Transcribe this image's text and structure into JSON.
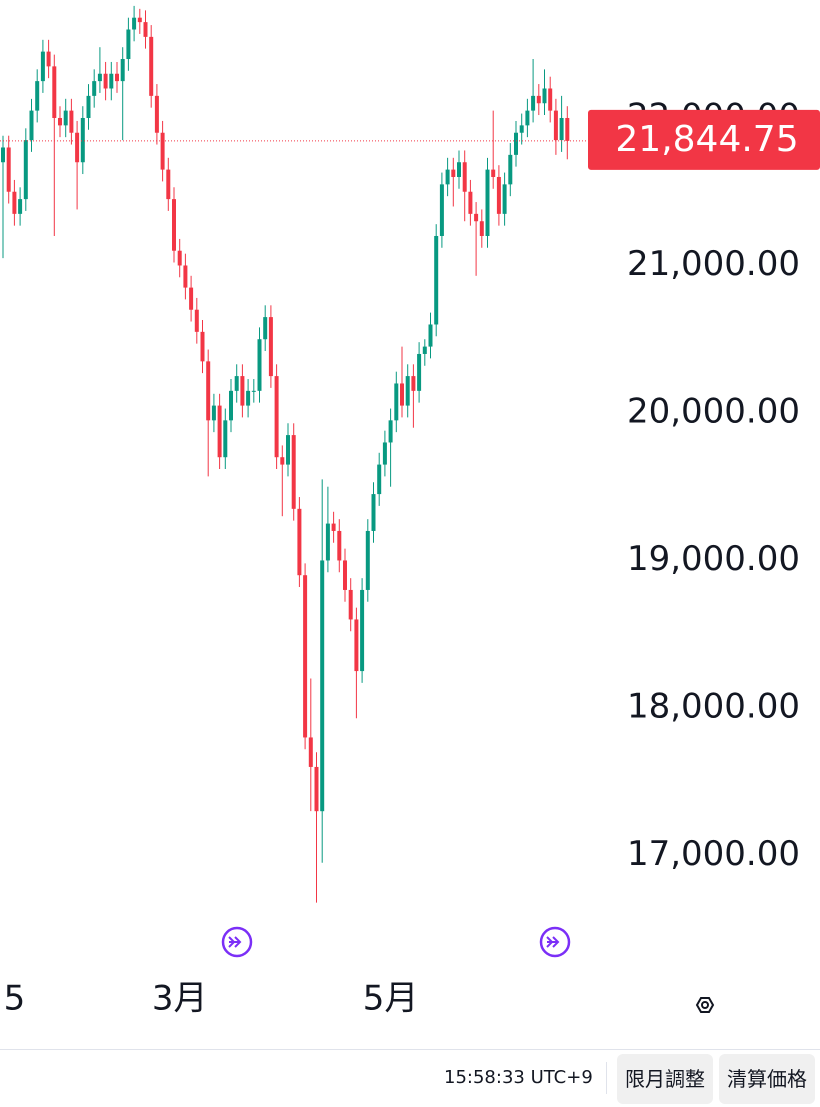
{
  "chart_data": {
    "type": "candlestick",
    "up_color": "#089981",
    "down_color": "#f23645",
    "ylim": [
      16230,
      22800
    ],
    "yticks": [
      {
        "value": 17000,
        "label": "17,000.00"
      },
      {
        "value": 18000,
        "label": "18,000.00"
      },
      {
        "value": 19000,
        "label": "19,000.00"
      },
      {
        "value": 20000,
        "label": "20,000.00"
      },
      {
        "value": 21000,
        "label": "21,000.00"
      },
      {
        "value": 22000,
        "label": "22,000.00"
      }
    ],
    "last_price": {
      "value": 21844.75,
      "label": "21,844.75"
    },
    "categories": [
      null,
      null,
      "5",
      null,
      null,
      null,
      null,
      null,
      null,
      null,
      null,
      null,
      null,
      null,
      null,
      null,
      null,
      null,
      null,
      null,
      null,
      null,
      null,
      null,
      null,
      null,
      null,
      null,
      null,
      null,
      null,
      "3月",
      null,
      null,
      null,
      null,
      null,
      null,
      null,
      null,
      null,
      null,
      null,
      null,
      null,
      null,
      null,
      null,
      null,
      null,
      null,
      null,
      null,
      null,
      null,
      null,
      null,
      null,
      null,
      null,
      null,
      null,
      null,
      null,
      null,
      null,
      null,
      null,
      "5月",
      null,
      null,
      null,
      null,
      null,
      null,
      null,
      null,
      null,
      null,
      null,
      null,
      null,
      null,
      null,
      null,
      null,
      null,
      null,
      null,
      null,
      null,
      null,
      null,
      null,
      null,
      null,
      null,
      null,
      null,
      null
    ],
    "ohlc": [
      [
        21700,
        21880,
        21050,
        21800
      ],
      [
        21800,
        21880,
        21420,
        21500
      ],
      [
        21500,
        21580,
        21270,
        21350
      ],
      [
        21350,
        21530,
        21270,
        21450
      ],
      [
        21450,
        21930,
        21370,
        21850
      ],
      [
        21850,
        22130,
        21770,
        22050
      ],
      [
        22050,
        22330,
        21970,
        22250
      ],
      [
        22250,
        22530,
        22170,
        22450
      ],
      [
        22450,
        22530,
        22270,
        22350
      ],
      [
        22350,
        22430,
        21200,
        22000
      ],
      [
        22000,
        22080,
        21870,
        21950
      ],
      [
        21950,
        22130,
        21870,
        22050
      ],
      [
        22050,
        22130,
        21820,
        21900
      ],
      [
        21900,
        21980,
        21380,
        21700
      ],
      [
        21700,
        22080,
        21620,
        22000
      ],
      [
        22000,
        22230,
        21920,
        22150
      ],
      [
        22150,
        22330,
        22070,
        22250
      ],
      [
        22250,
        22480,
        22170,
        22300
      ],
      [
        22300,
        22380,
        22120,
        22200
      ],
      [
        22200,
        22380,
        22120,
        22300
      ],
      [
        22300,
        22380,
        22170,
        22250
      ],
      [
        22250,
        22480,
        21850,
        22400
      ],
      [
        22400,
        22680,
        22320,
        22600
      ],
      [
        22600,
        22760,
        22520,
        22680
      ],
      [
        22680,
        22740,
        22570,
        22650
      ],
      [
        22650,
        22730,
        22470,
        22550
      ],
      [
        22550,
        22630,
        22070,
        22150
      ],
      [
        22150,
        22230,
        21820,
        21900
      ],
      [
        21900,
        21980,
        21570,
        21650
      ],
      [
        21650,
        21730,
        21370,
        21450
      ],
      [
        21450,
        21530,
        21020,
        21100
      ],
      [
        21100,
        21180,
        20920,
        21000
      ],
      [
        21000,
        21080,
        20770,
        20850
      ],
      [
        20850,
        20930,
        20620,
        20700
      ],
      [
        20700,
        20780,
        20470,
        20550
      ],
      [
        20550,
        20630,
        20270,
        20350
      ],
      [
        20350,
        20430,
        19570,
        19950
      ],
      [
        19950,
        20130,
        19870,
        20050
      ],
      [
        20050,
        20130,
        19620,
        19700
      ],
      [
        19700,
        20030,
        19620,
        19950
      ],
      [
        19950,
        20230,
        19870,
        20150
      ],
      [
        20150,
        20330,
        20070,
        20250
      ],
      [
        20250,
        20330,
        19970,
        20050
      ],
      [
        20050,
        20230,
        19970,
        20150
      ],
      [
        20150,
        20230,
        20070,
        20150
      ],
      [
        20150,
        20580,
        20070,
        20500
      ],
      [
        20500,
        20730,
        20420,
        20650
      ],
      [
        20650,
        20730,
        20170,
        20250
      ],
      [
        20250,
        20330,
        19620,
        19700
      ],
      [
        19700,
        19780,
        19300,
        19650
      ],
      [
        19650,
        19930,
        19570,
        19850
      ],
      [
        19850,
        19930,
        19270,
        19350
      ],
      [
        19350,
        19430,
        18820,
        18900
      ],
      [
        18900,
        18980,
        17720,
        17800
      ],
      [
        17800,
        18200,
        17300,
        17600
      ],
      [
        17600,
        17700,
        16680,
        17300
      ],
      [
        17300,
        19550,
        16950,
        19000
      ],
      [
        19000,
        19500,
        18920,
        19250
      ],
      [
        19250,
        19330,
        19120,
        19200
      ],
      [
        19200,
        19280,
        18920,
        19000
      ],
      [
        19000,
        19080,
        18720,
        18800
      ],
      [
        18800,
        18880,
        18520,
        18600
      ],
      [
        18600,
        18680,
        17930,
        18250
      ],
      [
        18250,
        18880,
        18170,
        18800
      ],
      [
        18800,
        19280,
        18720,
        19200
      ],
      [
        19200,
        19530,
        19120,
        19450
      ],
      [
        19450,
        19730,
        19370,
        19650
      ],
      [
        19650,
        19880,
        19570,
        19800
      ],
      [
        19800,
        20030,
        19500,
        19950
      ],
      [
        19950,
        20280,
        19870,
        20200
      ],
      [
        20200,
        20450,
        19970,
        20050
      ],
      [
        20050,
        20330,
        19970,
        20250
      ],
      [
        20250,
        20330,
        19900,
        20150
      ],
      [
        20150,
        20480,
        20070,
        20400
      ],
      [
        20400,
        20500,
        20320,
        20450
      ],
      [
        20450,
        20680,
        20370,
        20600
      ],
      [
        20600,
        21280,
        20520,
        21200
      ],
      [
        21200,
        21630,
        21120,
        21550
      ],
      [
        21550,
        21730,
        21470,
        21650
      ],
      [
        21650,
        21730,
        21400,
        21600
      ],
      [
        21600,
        21780,
        21520,
        21700
      ],
      [
        21700,
        21780,
        21300,
        21500
      ],
      [
        21500,
        21580,
        21270,
        21350
      ],
      [
        21350,
        21430,
        20930,
        21300
      ],
      [
        21300,
        21380,
        21120,
        21200
      ],
      [
        21200,
        21730,
        21120,
        21650
      ],
      [
        21650,
        22050,
        21520,
        21600
      ],
      [
        21600,
        21680,
        21270,
        21350
      ],
      [
        21350,
        21630,
        21270,
        21550
      ],
      [
        21550,
        21830,
        21470,
        21750
      ],
      [
        21750,
        21980,
        21670,
        21900
      ],
      [
        21900,
        22030,
        21820,
        21950
      ],
      [
        21950,
        22130,
        21870,
        22050
      ],
      [
        22050,
        22400,
        21970,
        22150
      ],
      [
        22150,
        22230,
        22020,
        22100
      ],
      [
        22100,
        22330,
        22020,
        22200
      ],
      [
        22200,
        22280,
        21970,
        22050
      ],
      [
        22050,
        22130,
        21750,
        21850
      ],
      [
        21850,
        22150,
        21770,
        22000
      ],
      [
        22000,
        22080,
        21720,
        21844.75
      ]
    ]
  },
  "footer": {
    "clock": "15:58:33 UTC+9",
    "buttons": [
      "限月調整",
      "清算価格"
    ]
  }
}
